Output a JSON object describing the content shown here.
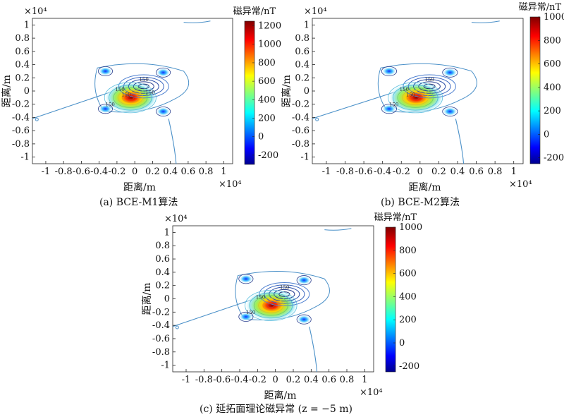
{
  "chart_data": [
    {
      "type": "contour",
      "caption": "(a) BCE-M1算法",
      "xlabel": "距离/m",
      "ylabel": "距离/m",
      "x_exponent": "×10⁴",
      "y_exponent": "×10⁴",
      "xticks": [
        "-1",
        "-0.8",
        "-0.6",
        "-0.4",
        "-0.2",
        "0",
        "0.2",
        "0.4",
        "0.6",
        "0.8",
        "1"
      ],
      "yticks": [
        "1",
        "0.8",
        "0.6",
        "0.4",
        "0.2",
        "0",
        "-0.2",
        "-0.4",
        "-0.6",
        "-0.8",
        "-1"
      ],
      "xlim": [
        -1.15,
        1.1
      ],
      "ylim": [
        -1.1,
        1.1
      ],
      "contour_labels": [
        "150",
        "150",
        "150",
        "150",
        "150"
      ],
      "colorbar": {
        "title": "磁异常/nT",
        "ticks": [
          "1200",
          "1000",
          "800",
          "600",
          "400",
          "200",
          "0",
          "-200"
        ],
        "range": [
          -300,
          1250
        ]
      }
    },
    {
      "type": "contour",
      "caption": "(b) BCE-M2算法",
      "xlabel": "距离/m",
      "ylabel": "距离/m",
      "x_exponent": "×10⁴",
      "y_exponent": "×10⁴",
      "xticks": [
        "-1",
        "-0.8",
        "-0.6",
        "-0.4",
        "-0.2",
        "0",
        "0.2",
        "0.4",
        "0.6",
        "0.8",
        "1"
      ],
      "yticks": [
        "1",
        "0.8",
        "0.6",
        "0.4",
        "0.2",
        "0",
        "-0.2",
        "-0.4",
        "-0.6",
        "-0.8",
        "-1"
      ],
      "xlim": [
        -1.15,
        1.1
      ],
      "ylim": [
        -1.1,
        1.1
      ],
      "contour_labels": [
        "150",
        "150",
        "150",
        "150"
      ],
      "colorbar": {
        "title": "磁异常/nT",
        "ticks": [
          "1000",
          "800",
          "600",
          "400",
          "200",
          "0",
          "-200"
        ],
        "range": [
          -250,
          1000
        ]
      }
    },
    {
      "type": "contour",
      "caption": "(c) 延拓面理论磁异常 (z = −5 m)",
      "xlabel": "距离/m",
      "ylabel": "距离/m",
      "x_exponent": "×10⁴",
      "y_exponent": "×10⁴",
      "xticks": [
        "-1",
        "-0.8",
        "-0.6",
        "-0.4",
        "-0.2",
        "0",
        "0.2",
        "0.4",
        "0.6",
        "0.8",
        "1"
      ],
      "yticks": [
        "1",
        "0.8",
        "0.6",
        "0.4",
        "0.2",
        "0",
        "-0.2",
        "-0.4",
        "-0.6",
        "-0.8",
        "-1"
      ],
      "xlim": [
        -1.15,
        1.1
      ],
      "ylim": [
        -1.1,
        1.1
      ],
      "contour_labels": [
        "150",
        "150",
        "150"
      ],
      "colorbar": {
        "title": "磁异常/nT",
        "ticks": [
          "1000",
          "800",
          "600",
          "400",
          "200",
          "0",
          "-200"
        ],
        "range": [
          -250,
          1000
        ]
      }
    }
  ]
}
